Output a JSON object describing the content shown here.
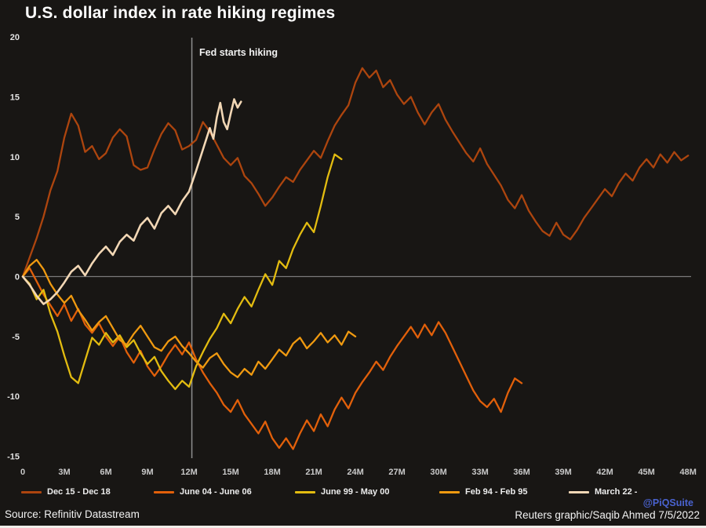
{
  "chart_data": {
    "type": "line",
    "title": "U.S. dollar index in rate hiking regimes",
    "xlabel": "",
    "ylabel": "",
    "xlim": [
      0,
      48
    ],
    "ylim": [
      -15,
      20
    ],
    "grid": false,
    "zero_line": true,
    "legend_position": "bottom",
    "y_ticks": [
      20,
      15,
      10,
      5,
      0,
      -5,
      -10,
      -15
    ],
    "x_tick_months": [
      0,
      3,
      6,
      9,
      12,
      15,
      18,
      21,
      24,
      27,
      30,
      33,
      36,
      39,
      42,
      45,
      48
    ],
    "x_tick_labels": [
      "0",
      "3M",
      "6M",
      "9M",
      "12M",
      "15M",
      "18M",
      "21M",
      "24M",
      "27M",
      "30M",
      "33M",
      "36M",
      "39M",
      "42M",
      "45M",
      "48M"
    ],
    "annotation": {
      "label": "Fed starts hiking",
      "x": 12.2
    },
    "series": [
      {
        "name": "Dec 15 - Dec 18",
        "color": "#ad450e",
        "points": [
          [
            0,
            0
          ],
          [
            0.5,
            1.6
          ],
          [
            1,
            3.2
          ],
          [
            1.5,
            5
          ],
          [
            2,
            7.2
          ],
          [
            2.5,
            8.8
          ],
          [
            3,
            11.6
          ],
          [
            3.5,
            13.6
          ],
          [
            4,
            12.6
          ],
          [
            4.5,
            10.4
          ],
          [
            5,
            10.9
          ],
          [
            5.5,
            9.8
          ],
          [
            6,
            10.3
          ],
          [
            6.5,
            11.6
          ],
          [
            7,
            12.3
          ],
          [
            7.5,
            11.7
          ],
          [
            8,
            9.3
          ],
          [
            8.5,
            8.9
          ],
          [
            9,
            9.1
          ],
          [
            9.5,
            10.6
          ],
          [
            10,
            11.9
          ],
          [
            10.5,
            12.8
          ],
          [
            11,
            12.2
          ],
          [
            11.5,
            10.6
          ],
          [
            12,
            10.9
          ],
          [
            12.5,
            11.4
          ],
          [
            13,
            12.9
          ],
          [
            13.5,
            12.1
          ],
          [
            14,
            11
          ],
          [
            14.5,
            9.9
          ],
          [
            15,
            9.3
          ],
          [
            15.5,
            9.9
          ],
          [
            16,
            8.4
          ],
          [
            16.5,
            7.8
          ],
          [
            17,
            6.9
          ],
          [
            17.5,
            5.9
          ],
          [
            18,
            6.6
          ],
          [
            18.5,
            7.5
          ],
          [
            19,
            8.3
          ],
          [
            19.5,
            7.9
          ],
          [
            20,
            8.9
          ],
          [
            20.5,
            9.7
          ],
          [
            21,
            10.5
          ],
          [
            21.5,
            9.9
          ],
          [
            22,
            11.3
          ],
          [
            22.5,
            12.6
          ],
          [
            23,
            13.5
          ],
          [
            23.5,
            14.3
          ],
          [
            24,
            16.2
          ],
          [
            24.5,
            17.4
          ],
          [
            25,
            16.6
          ],
          [
            25.5,
            17.2
          ],
          [
            26,
            15.8
          ],
          [
            26.5,
            16.4
          ],
          [
            27,
            15.2
          ],
          [
            27.5,
            14.4
          ],
          [
            28,
            15
          ],
          [
            28.5,
            13.7
          ],
          [
            29,
            12.7
          ],
          [
            29.5,
            13.7
          ],
          [
            30,
            14.4
          ],
          [
            30.5,
            13.1
          ],
          [
            31,
            12.1
          ],
          [
            31.5,
            11.2
          ],
          [
            32,
            10.3
          ],
          [
            32.5,
            9.6
          ],
          [
            33,
            10.7
          ],
          [
            33.5,
            9.4
          ],
          [
            34,
            8.5
          ],
          [
            34.5,
            7.6
          ],
          [
            35,
            6.4
          ],
          [
            35.5,
            5.7
          ],
          [
            36,
            6.8
          ],
          [
            36.5,
            5.5
          ],
          [
            37,
            4.6
          ],
          [
            37.5,
            3.8
          ],
          [
            38,
            3.4
          ],
          [
            38.5,
            4.5
          ],
          [
            39,
            3.5
          ],
          [
            39.5,
            3.1
          ],
          [
            40,
            3.9
          ],
          [
            40.5,
            4.9
          ],
          [
            41,
            5.7
          ],
          [
            41.5,
            6.5
          ],
          [
            42,
            7.3
          ],
          [
            42.5,
            6.7
          ],
          [
            43,
            7.8
          ],
          [
            43.5,
            8.6
          ],
          [
            44,
            8
          ],
          [
            44.5,
            9.1
          ],
          [
            45,
            9.8
          ],
          [
            45.5,
            9.1
          ],
          [
            46,
            10.2
          ],
          [
            46.5,
            9.5
          ],
          [
            47,
            10.4
          ],
          [
            47.5,
            9.7
          ],
          [
            48,
            10.1
          ]
        ]
      },
      {
        "name": "June 04 - June 06",
        "color": "#e2600a",
        "points": [
          [
            0,
            0
          ],
          [
            0.5,
            0.7
          ],
          [
            1,
            -0.4
          ],
          [
            1.5,
            -1.5
          ],
          [
            2,
            -2.4
          ],
          [
            2.5,
            -3.3
          ],
          [
            3,
            -2.3
          ],
          [
            3.5,
            -3.7
          ],
          [
            4,
            -2.7
          ],
          [
            4.5,
            -4
          ],
          [
            5,
            -4.7
          ],
          [
            5.5,
            -3.9
          ],
          [
            6,
            -5
          ],
          [
            6.5,
            -5.8
          ],
          [
            7,
            -5
          ],
          [
            7.5,
            -6.3
          ],
          [
            8,
            -7.2
          ],
          [
            8.5,
            -6.2
          ],
          [
            9,
            -7.5
          ],
          [
            9.5,
            -8.3
          ],
          [
            10,
            -7.5
          ],
          [
            10.5,
            -6.5
          ],
          [
            11,
            -5.7
          ],
          [
            11.5,
            -6.5
          ],
          [
            12,
            -5.5
          ],
          [
            12.5,
            -6.9
          ],
          [
            13,
            -8
          ],
          [
            13.5,
            -8.9
          ],
          [
            14,
            -9.7
          ],
          [
            14.5,
            -10.7
          ],
          [
            15,
            -11.3
          ],
          [
            15.5,
            -10.3
          ],
          [
            16,
            -11.5
          ],
          [
            16.5,
            -12.3
          ],
          [
            17,
            -13.1
          ],
          [
            17.5,
            -12.1
          ],
          [
            18,
            -13.5
          ],
          [
            18.5,
            -14.3
          ],
          [
            19,
            -13.5
          ],
          [
            19.5,
            -14.4
          ],
          [
            20,
            -13.1
          ],
          [
            20.5,
            -12
          ],
          [
            21,
            -12.9
          ],
          [
            21.5,
            -11.5
          ],
          [
            22,
            -12.5
          ],
          [
            22.5,
            -11.1
          ],
          [
            23,
            -10.1
          ],
          [
            23.5,
            -11
          ],
          [
            24,
            -9.7
          ],
          [
            24.5,
            -8.8
          ],
          [
            25,
            -8
          ],
          [
            25.5,
            -7.1
          ],
          [
            26,
            -7.8
          ],
          [
            26.5,
            -6.7
          ],
          [
            27,
            -5.8
          ],
          [
            27.5,
            -5
          ],
          [
            28,
            -4.2
          ],
          [
            28.5,
            -5.1
          ],
          [
            29,
            -4
          ],
          [
            29.5,
            -4.9
          ],
          [
            30,
            -3.8
          ],
          [
            30.5,
            -4.7
          ],
          [
            31,
            -5.9
          ],
          [
            31.5,
            -7.1
          ],
          [
            32,
            -8.3
          ],
          [
            32.5,
            -9.5
          ],
          [
            33,
            -10.4
          ],
          [
            33.5,
            -10.9
          ],
          [
            34,
            -10.2
          ],
          [
            34.5,
            -11.3
          ],
          [
            35,
            -9.7
          ],
          [
            35.5,
            -8.5
          ],
          [
            36,
            -8.9
          ]
        ]
      },
      {
        "name": "June 99 - May 00",
        "color": "#e3bc10",
        "points": [
          [
            0,
            0
          ],
          [
            0.5,
            -0.6
          ],
          [
            1,
            -1.9
          ],
          [
            1.5,
            -1.1
          ],
          [
            2,
            -3.1
          ],
          [
            2.5,
            -4.6
          ],
          [
            3,
            -6.6
          ],
          [
            3.5,
            -8.4
          ],
          [
            4,
            -8.9
          ],
          [
            4.5,
            -7
          ],
          [
            5,
            -5.1
          ],
          [
            5.5,
            -5.7
          ],
          [
            6,
            -4.7
          ],
          [
            6.5,
            -5.5
          ],
          [
            7,
            -4.9
          ],
          [
            7.5,
            -5.9
          ],
          [
            8,
            -5.3
          ],
          [
            8.5,
            -6.4
          ],
          [
            9,
            -7.3
          ],
          [
            9.5,
            -6.7
          ],
          [
            10,
            -7.9
          ],
          [
            10.5,
            -8.7
          ],
          [
            11,
            -9.4
          ],
          [
            11.5,
            -8.7
          ],
          [
            12,
            -9.2
          ],
          [
            12.5,
            -7.5
          ],
          [
            13,
            -6.3
          ],
          [
            13.5,
            -5.2
          ],
          [
            14,
            -4.3
          ],
          [
            14.5,
            -3.1
          ],
          [
            15,
            -3.9
          ],
          [
            15.5,
            -2.7
          ],
          [
            16,
            -1.7
          ],
          [
            16.5,
            -2.5
          ],
          [
            17,
            -1.1
          ],
          [
            17.5,
            0.2
          ],
          [
            18,
            -0.7
          ],
          [
            18.5,
            1.3
          ],
          [
            19,
            0.7
          ],
          [
            19.5,
            2.3
          ],
          [
            20,
            3.5
          ],
          [
            20.5,
            4.5
          ],
          [
            21,
            3.7
          ],
          [
            21.5,
            5.9
          ],
          [
            22,
            8.3
          ],
          [
            22.5,
            10.2
          ],
          [
            23,
            9.8
          ]
        ]
      },
      {
        "name": "Feb 94 - Feb 95",
        "color": "#f09a10",
        "points": [
          [
            0,
            0
          ],
          [
            0.5,
            0.9
          ],
          [
            1,
            1.4
          ],
          [
            1.5,
            0.6
          ],
          [
            2,
            -0.6
          ],
          [
            2.5,
            -1.5
          ],
          [
            3,
            -2.2
          ],
          [
            3.5,
            -1.6
          ],
          [
            4,
            -2.8
          ],
          [
            4.5,
            -3.6
          ],
          [
            5,
            -4.5
          ],
          [
            5.5,
            -3.8
          ],
          [
            6,
            -3.3
          ],
          [
            6.5,
            -4.3
          ],
          [
            7,
            -5.3
          ],
          [
            7.5,
            -5.7
          ],
          [
            8,
            -4.8
          ],
          [
            8.5,
            -4.1
          ],
          [
            9,
            -5
          ],
          [
            9.5,
            -5.9
          ],
          [
            10,
            -6.2
          ],
          [
            10.5,
            -5.4
          ],
          [
            11,
            -5
          ],
          [
            11.5,
            -5.8
          ],
          [
            12,
            -6.4
          ],
          [
            12.5,
            -7.1
          ],
          [
            13,
            -7.6
          ],
          [
            13.5,
            -6.8
          ],
          [
            14,
            -6.4
          ],
          [
            14.5,
            -7.3
          ],
          [
            15,
            -8
          ],
          [
            15.5,
            -8.4
          ],
          [
            16,
            -7.7
          ],
          [
            16.5,
            -8.2
          ],
          [
            17,
            -7.1
          ],
          [
            17.5,
            -7.7
          ],
          [
            18,
            -6.9
          ],
          [
            18.5,
            -6.1
          ],
          [
            19,
            -6.6
          ],
          [
            19.5,
            -5.6
          ],
          [
            20,
            -5.1
          ],
          [
            20.5,
            -6
          ],
          [
            21,
            -5.4
          ],
          [
            21.5,
            -4.7
          ],
          [
            22,
            -5.5
          ],
          [
            22.5,
            -4.9
          ],
          [
            23,
            -5.7
          ],
          [
            23.5,
            -4.6
          ],
          [
            24,
            -5
          ]
        ]
      },
      {
        "name": "March 22 -",
        "color": "#f2d7b5",
        "points": [
          [
            0,
            0
          ],
          [
            0.5,
            -0.7
          ],
          [
            1,
            -1.6
          ],
          [
            1.5,
            -2.3
          ],
          [
            2,
            -1.9
          ],
          [
            2.5,
            -1.3
          ],
          [
            3,
            -0.5
          ],
          [
            3.5,
            0.4
          ],
          [
            4,
            0.9
          ],
          [
            4.5,
            0.1
          ],
          [
            5,
            1.1
          ],
          [
            5.5,
            1.9
          ],
          [
            6,
            2.5
          ],
          [
            6.5,
            1.8
          ],
          [
            7,
            2.9
          ],
          [
            7.5,
            3.5
          ],
          [
            8,
            3
          ],
          [
            8.5,
            4.3
          ],
          [
            9,
            4.9
          ],
          [
            9.5,
            4
          ],
          [
            10,
            5.3
          ],
          [
            10.5,
            5.9
          ],
          [
            11,
            5.2
          ],
          [
            11.5,
            6.3
          ],
          [
            12,
            7.1
          ],
          [
            12.5,
            8.8
          ],
          [
            13,
            10.6
          ],
          [
            13.5,
            12.4
          ],
          [
            13.75,
            11.5
          ],
          [
            14,
            13.3
          ],
          [
            14.25,
            14.5
          ],
          [
            14.5,
            12.9
          ],
          [
            14.75,
            12.3
          ],
          [
            15,
            13.6
          ],
          [
            15.25,
            14.8
          ],
          [
            15.5,
            14.1
          ],
          [
            15.75,
            14.6
          ]
        ]
      }
    ]
  },
  "annotation": {
    "label": "Fed starts hiking"
  },
  "footer": {
    "source": "Source: Refinitiv Datastream",
    "credit": "Reuters graphic/Saqib Ahmed 7/5/2022",
    "watermark": "@PiQSuite",
    "watermark_color": "#4a63d0"
  }
}
